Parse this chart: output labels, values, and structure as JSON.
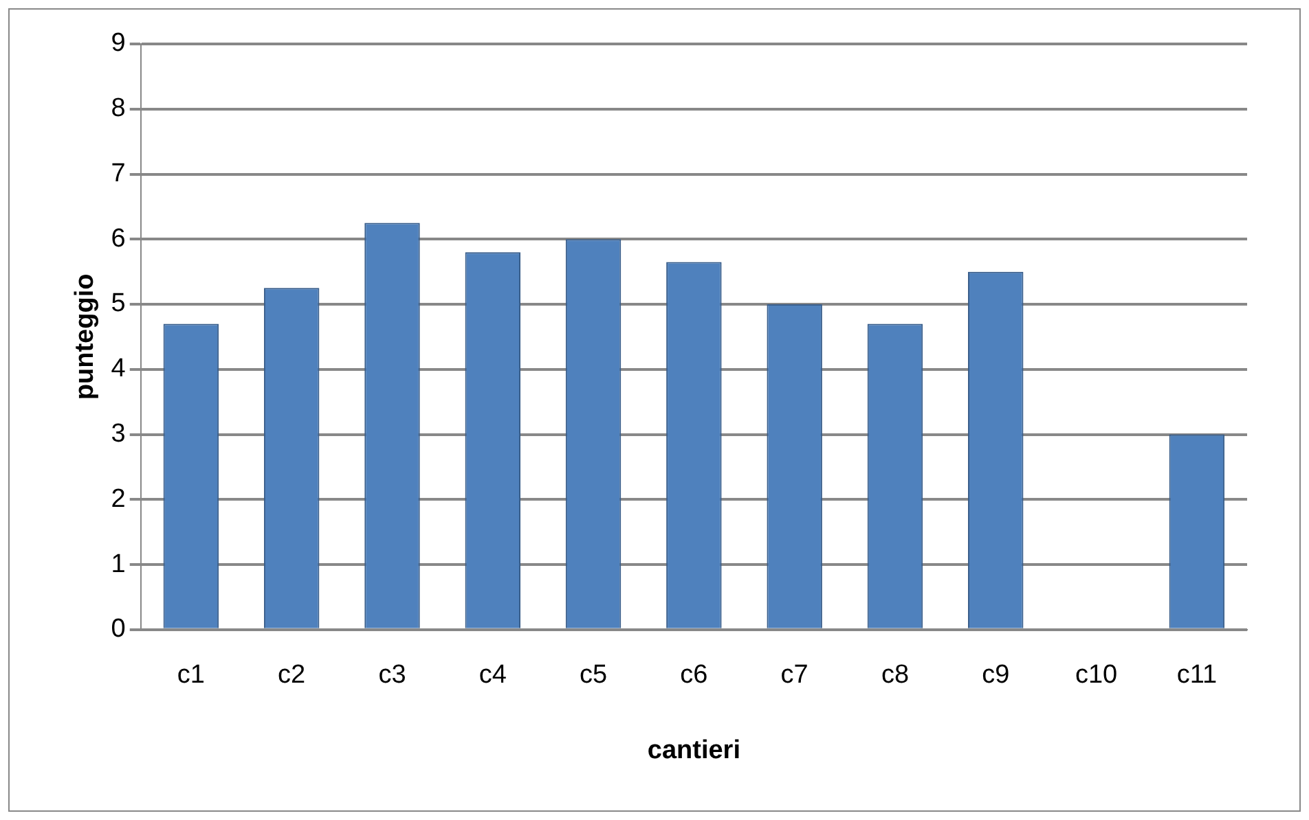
{
  "chart_data": {
    "type": "bar",
    "xlabel": "cantieri",
    "ylabel": "punteggio",
    "categories": [
      "c1",
      "c2",
      "c3",
      "c4",
      "c5",
      "c6",
      "c7",
      "c8",
      "c9",
      "c10",
      "c11"
    ],
    "values": [
      4.7,
      5.25,
      6.25,
      5.8,
      6.0,
      5.65,
      5.0,
      4.7,
      5.5,
      null,
      3.0
    ],
    "color": "#4f81bd",
    "ylim": [
      0,
      9
    ],
    "yticks": [
      0,
      1,
      2,
      3,
      4,
      5,
      6,
      7,
      8,
      9
    ],
    "grid": "y"
  }
}
